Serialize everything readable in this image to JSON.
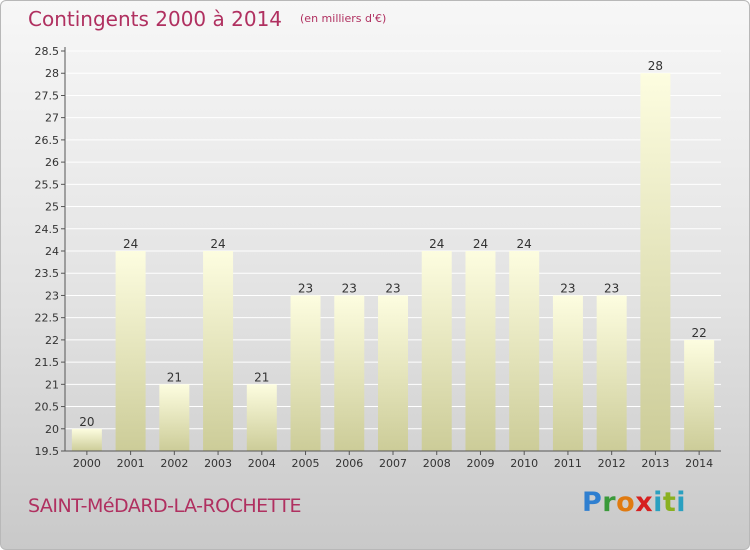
{
  "title": "Contingents 2000 à 2014",
  "subtitle": "(en milliers d'€)",
  "commune": "SAINT-MéDARD-LA-ROCHETTE",
  "logo": {
    "text": "Proxiti",
    "parts": [
      "P",
      "r",
      "o",
      "x",
      "i",
      "t",
      "i"
    ]
  },
  "colors": {
    "title": "#b03060",
    "bar_top": "#fdfde0",
    "bar_bottom": "#cccc98",
    "grid": "#ffffff"
  },
  "chart_data": {
    "type": "bar",
    "categories": [
      "2000",
      "2001",
      "2002",
      "2003",
      "2004",
      "2005",
      "2006",
      "2007",
      "2008",
      "2009",
      "2010",
      "2011",
      "2012",
      "2013",
      "2014"
    ],
    "values": [
      20,
      24,
      21,
      24,
      21,
      23,
      23,
      23,
      24,
      24,
      24,
      23,
      23,
      28,
      22
    ],
    "ylim": [
      19.5,
      28.5
    ],
    "yticks": [
      "19.5",
      "20",
      "20.5",
      "21",
      "21.5",
      "22",
      "22.5",
      "23",
      "23.5",
      "24",
      "24.5",
      "25",
      "25.5",
      "26",
      "26.5",
      "27",
      "27.5",
      "28",
      "28.5"
    ],
    "grid": true,
    "data_labels": true
  }
}
